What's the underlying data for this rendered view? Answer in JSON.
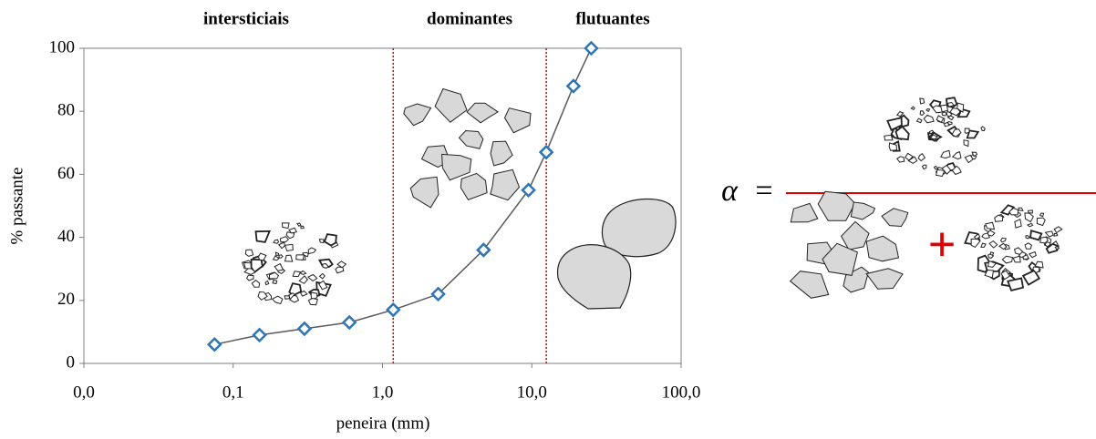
{
  "chart_data": {
    "type": "line",
    "regions": [
      "intersticiais",
      "dominantes",
      "flutuantes"
    ],
    "x_label": "peneira (mm)",
    "y_label": "% passante",
    "x": [
      0.075,
      0.15,
      0.3,
      0.6,
      1.18,
      2.36,
      4.75,
      9.5,
      12.5,
      19,
      25
    ],
    "series": [
      {
        "color": "#2e75b6",
        "values": [
          6,
          9,
          11,
          13,
          17,
          22,
          36,
          55,
          67,
          88,
          100
        ]
      }
    ],
    "boundaries": [
      1.18,
      12.5
    ],
    "boundary_color": "#e00000",
    "xscale": "log",
    "xlim": [
      0.01,
      100
    ],
    "xticks": [
      {
        "value": 0.01,
        "label": "0,0"
      },
      {
        "value": 0.1,
        "label": "0,1"
      },
      {
        "value": 1,
        "label": "1,0"
      },
      {
        "value": 10,
        "label": "10,0"
      },
      {
        "value": 100,
        "label": "100,0"
      }
    ],
    "ylim": [
      0,
      100
    ],
    "yticks": [
      0,
      20,
      40,
      60,
      80,
      100
    ]
  },
  "formula": {
    "lhs": "α",
    "equals": "=",
    "plus": "+"
  }
}
